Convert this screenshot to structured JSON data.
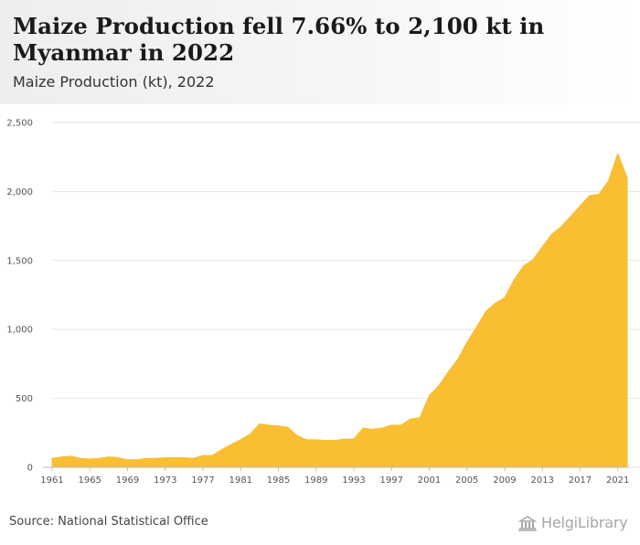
{
  "header": {
    "title": "Maize Production fell 7.66% to 2,100 kt in Myanmar in 2022",
    "subtitle": "Maize Production (kt), 2022"
  },
  "footer": {
    "source": "Source: National Statistical Office",
    "brand": "HelgiLibrary"
  },
  "colors": {
    "area": "#f9be32",
    "grid": "#e6e6e6",
    "tick": "#555555"
  },
  "chart_data": {
    "type": "area",
    "title": "Maize Production fell 7.66% to 2,100 kt in Myanmar in 2022",
    "subtitle": "Maize Production (kt), 2022",
    "xlabel": "",
    "ylabel": "",
    "ylim": [
      0,
      2500
    ],
    "yticks": [
      0,
      500,
      1000,
      1500,
      2000,
      2500
    ],
    "ytick_labels": [
      "0",
      "500",
      "1,000",
      "1,500",
      "2,000",
      "2,500"
    ],
    "xtick_labels": [
      "1961",
      "1965",
      "1969",
      "1973",
      "1977",
      "1981",
      "1985",
      "1989",
      "1993",
      "1997",
      "2001",
      "2005",
      "2009",
      "2013",
      "2017",
      "2021"
    ],
    "grid": true,
    "legend": "none",
    "x": [
      1961,
      1962,
      1963,
      1964,
      1965,
      1966,
      1967,
      1968,
      1969,
      1970,
      1971,
      1972,
      1973,
      1974,
      1975,
      1976,
      1977,
      1978,
      1979,
      1980,
      1981,
      1982,
      1983,
      1984,
      1985,
      1986,
      1987,
      1988,
      1989,
      1990,
      1991,
      1992,
      1993,
      1994,
      1995,
      1996,
      1997,
      1998,
      1999,
      2000,
      2001,
      2002,
      2003,
      2004,
      2005,
      2006,
      2007,
      2008,
      2009,
      2010,
      2011,
      2012,
      2013,
      2014,
      2015,
      2016,
      2017,
      2018,
      2019,
      2020,
      2021,
      2022
    ],
    "values": [
      65,
      75,
      80,
      65,
      60,
      65,
      75,
      70,
      55,
      55,
      65,
      65,
      70,
      70,
      70,
      65,
      85,
      85,
      130,
      165,
      200,
      240,
      315,
      305,
      300,
      290,
      230,
      200,
      200,
      195,
      195,
      205,
      205,
      285,
      275,
      285,
      305,
      305,
      350,
      360,
      520,
      590,
      690,
      780,
      905,
      1015,
      1130,
      1190,
      1230,
      1360,
      1460,
      1505,
      1600,
      1690,
      1745,
      1820,
      1895,
      1970,
      1980,
      2075,
      2275,
      2100
    ]
  }
}
